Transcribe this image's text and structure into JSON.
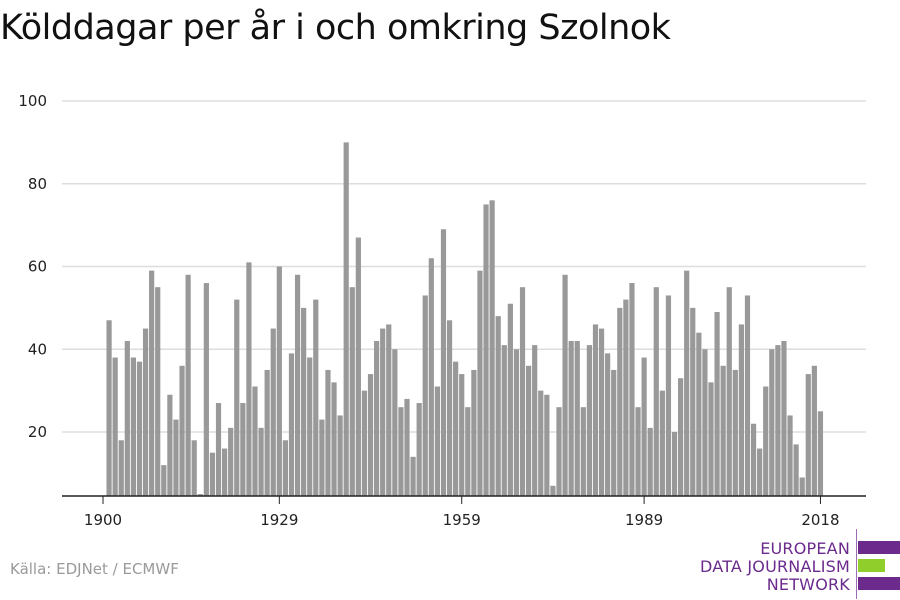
{
  "title": "Kölddagar per år i och omkring Szolnok",
  "source": "Källa: EDJNet / ECMWF",
  "logo": {
    "line1": "EUROPEAN",
    "line2": "DATA JOURNALISM",
    "line3": "NETWORK",
    "colors": {
      "purple": "#6b2a8c",
      "green": "#8fce2b"
    }
  },
  "colors": {
    "bar": "#999999",
    "grid": "#dddddd",
    "axis": "#222222"
  },
  "chart_data": {
    "type": "bar",
    "title": "Kölddagar per år i och omkring Szolnok",
    "xlabel": "",
    "ylabel": "",
    "ylim": [
      5,
      100
    ],
    "yticks": [
      20,
      40,
      60,
      80,
      100
    ],
    "xticks": [
      1900,
      1929,
      1959,
      1989,
      2018
    ],
    "x_start": 1900,
    "values": [
      4,
      47,
      38,
      18,
      42,
      38,
      37,
      45,
      59,
      55,
      12,
      29,
      23,
      36,
      58,
      18,
      5,
      56,
      15,
      27,
      16,
      21,
      52,
      27,
      61,
      31,
      21,
      35,
      45,
      60,
      18,
      39,
      58,
      50,
      38,
      52,
      23,
      35,
      32,
      24,
      90,
      55,
      67,
      30,
      34,
      42,
      45,
      46,
      40,
      26,
      28,
      14,
      27,
      53,
      62,
      31,
      69,
      47,
      37,
      34,
      26,
      35,
      59,
      75,
      76,
      48,
      41,
      51,
      40,
      55,
      36,
      41,
      30,
      29,
      7,
      26,
      58,
      42,
      42,
      26,
      41,
      46,
      45,
      39,
      35,
      50,
      52,
      56,
      26,
      38,
      21,
      55,
      30,
      53,
      20,
      33,
      59,
      50,
      44,
      40,
      32,
      49,
      36,
      55,
      35,
      46,
      53,
      22,
      16,
      31,
      40,
      41,
      42,
      24,
      17,
      9,
      34,
      36,
      25
    ]
  }
}
